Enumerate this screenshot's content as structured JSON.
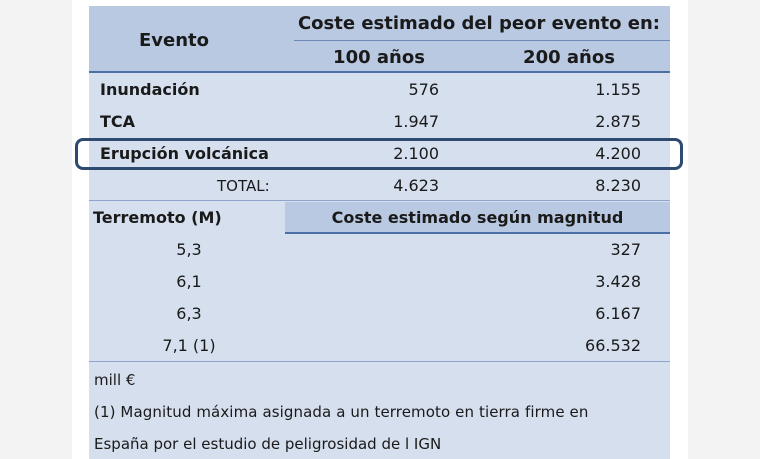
{
  "header": {
    "evento": "Evento",
    "coste_title": "Coste estimado del peor evento en:",
    "col_100": "100 años",
    "col_200": "200 años"
  },
  "events": [
    {
      "name": "Inundación",
      "v100": "576",
      "v200": "1.155"
    },
    {
      "name": "TCA",
      "v100": "1.947",
      "v200": "2.875"
    },
    {
      "name": "Erupción volcánica",
      "v100": "2.100",
      "v200": "4.200"
    }
  ],
  "total": {
    "label": "TOTAL:",
    "v100": "4.623",
    "v200": "8.230"
  },
  "earthquake": {
    "label": "Terremoto (M)",
    "coste_label": "Coste estimado según magnitud",
    "rows": [
      {
        "magnitude": "5,3",
        "cost": "327"
      },
      {
        "magnitude": "6,1",
        "cost": "3.428"
      },
      {
        "magnitude": "6,3",
        "cost": "6.167"
      },
      {
        "magnitude": "7,1 (1)",
        "cost": "66.532"
      }
    ]
  },
  "notes": {
    "unit": "mill €",
    "footnote_line1": "(1) Magnitud máxima asignada a un terremoto en tierra firme en",
    "footnote_line2": "España por el estudio de peligrosidad de l IGN"
  }
}
